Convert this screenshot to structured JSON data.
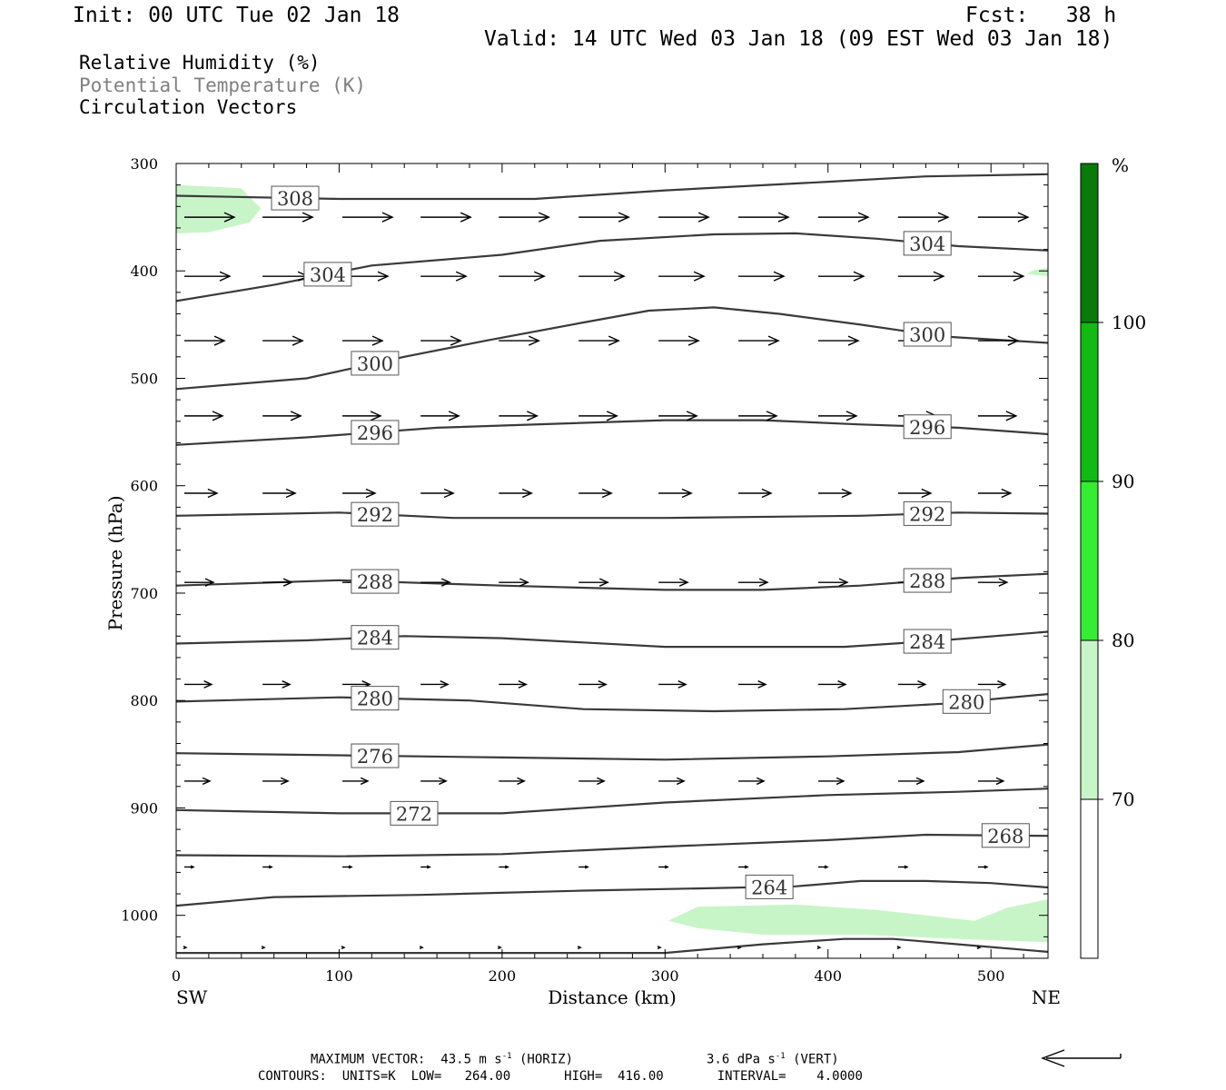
{
  "header": {
    "init": "Init: 00 UTC Tue 02 Jan 18",
    "fcst": "Fcst:   38 h",
    "valid": "Valid: 14 UTC Wed 03 Jan 18 (09 EST Wed 03 Jan 18)"
  },
  "fields": {
    "rh": "Relative Humidity (%)",
    "theta": "Potential Temperature (K)",
    "vectors": "Circulation Vectors"
  },
  "colors": {
    "contour": "#3a3a3a",
    "rh70": "#c8f5c8",
    "rh80": "#33ee33",
    "rh90": "#11bb11",
    "rh100": "#0a7a0a",
    "muted_text": "#808080"
  },
  "chart_data": {
    "type": "cross-section",
    "xlabel": "Distance (km)",
    "ylabel": "Pressure (hPa)",
    "xlim": [
      0,
      535
    ],
    "ylim": [
      1040,
      300
    ],
    "x_ticks": [
      "0",
      "100",
      "200",
      "300",
      "400",
      "500"
    ],
    "y_ticks": [
      "300",
      "400",
      "500",
      "600",
      "700",
      "800",
      "900",
      "1000"
    ],
    "left_label": "SW",
    "right_label": "NE",
    "contours": [
      {
        "level": "308",
        "label_x": 73,
        "points": [
          [
            0,
            330
          ],
          [
            100,
            333
          ],
          [
            220,
            333
          ],
          [
            300,
            325
          ],
          [
            400,
            317
          ],
          [
            460,
            312
          ],
          [
            535,
            310
          ]
        ]
      },
      {
        "level": "304",
        "label_x": 93,
        "label2_x": 461,
        "points": [
          [
            0,
            428
          ],
          [
            60,
            413
          ],
          [
            120,
            395
          ],
          [
            200,
            385
          ],
          [
            260,
            372
          ],
          [
            330,
            366
          ],
          [
            380,
            365
          ],
          [
            430,
            370
          ],
          [
            480,
            377
          ],
          [
            535,
            381
          ]
        ]
      },
      {
        "level": "300",
        "label_x": 122,
        "label2_x": 461,
        "points": [
          [
            0,
            510
          ],
          [
            80,
            500
          ],
          [
            140,
            480
          ],
          [
            190,
            465
          ],
          [
            250,
            448
          ],
          [
            290,
            437
          ],
          [
            330,
            434
          ],
          [
            370,
            440
          ],
          [
            420,
            450
          ],
          [
            470,
            461
          ],
          [
            535,
            467
          ]
        ]
      },
      {
        "level": "296",
        "label_x": 122,
        "label2_x": 461,
        "points": [
          [
            0,
            562
          ],
          [
            80,
            555
          ],
          [
            160,
            546
          ],
          [
            240,
            542
          ],
          [
            300,
            539
          ],
          [
            360,
            539
          ],
          [
            420,
            543
          ],
          [
            480,
            546
          ],
          [
            535,
            552
          ]
        ]
      },
      {
        "level": "292",
        "label_x": 122,
        "label2_x": 461,
        "points": [
          [
            0,
            628
          ],
          [
            100,
            625
          ],
          [
            170,
            630
          ],
          [
            300,
            630
          ],
          [
            420,
            628
          ],
          [
            480,
            625
          ],
          [
            535,
            626
          ]
        ]
      },
      {
        "level": "288",
        "label_x": 122,
        "label2_x": 461,
        "points": [
          [
            0,
            693
          ],
          [
            100,
            688
          ],
          [
            200,
            693
          ],
          [
            300,
            697
          ],
          [
            360,
            697
          ],
          [
            420,
            693
          ],
          [
            480,
            686
          ],
          [
            535,
            682
          ]
        ]
      },
      {
        "level": "284",
        "label_x": 122,
        "label2_x": 461,
        "points": [
          [
            0,
            747
          ],
          [
            80,
            744
          ],
          [
            140,
            740
          ],
          [
            200,
            742
          ],
          [
            300,
            750
          ],
          [
            410,
            750
          ],
          [
            470,
            744
          ],
          [
            535,
            736
          ]
        ]
      },
      {
        "level": "280",
        "label_x": 122,
        "label2_x": 485,
        "points": [
          [
            0,
            801
          ],
          [
            100,
            797
          ],
          [
            180,
            800
          ],
          [
            250,
            808
          ],
          [
            330,
            810
          ],
          [
            410,
            808
          ],
          [
            470,
            803
          ],
          [
            535,
            794
          ]
        ]
      },
      {
        "level": "276",
        "label_x": 122,
        "points": [
          [
            0,
            849
          ],
          [
            100,
            851
          ],
          [
            200,
            853
          ],
          [
            300,
            855
          ],
          [
            400,
            852
          ],
          [
            480,
            848
          ],
          [
            535,
            841
          ]
        ]
      },
      {
        "level": "272",
        "label_x": 146,
        "points": [
          [
            0,
            902
          ],
          [
            100,
            905
          ],
          [
            200,
            905
          ],
          [
            300,
            895
          ],
          [
            400,
            888
          ],
          [
            480,
            885
          ],
          [
            535,
            882
          ]
        ]
      },
      {
        "level": "268",
        "label_x": 509,
        "points": [
          [
            0,
            944
          ],
          [
            100,
            945
          ],
          [
            200,
            943
          ],
          [
            300,
            936
          ],
          [
            400,
            930
          ],
          [
            460,
            925
          ],
          [
            535,
            926
          ]
        ]
      },
      {
        "level": "264",
        "label_x": 364,
        "points": [
          [
            0,
            991
          ],
          [
            60,
            983
          ],
          [
            150,
            981
          ],
          [
            250,
            977
          ],
          [
            320,
            975
          ],
          [
            380,
            973
          ],
          [
            420,
            968
          ],
          [
            460,
            968
          ],
          [
            500,
            970
          ],
          [
            535,
            974
          ]
        ]
      },
      {
        "level": "",
        "points": [
          [
            0,
            1035
          ],
          [
            200,
            1035
          ],
          [
            300,
            1035
          ],
          [
            360,
            1027
          ],
          [
            410,
            1022
          ],
          [
            440,
            1022
          ],
          [
            480,
            1027
          ],
          [
            535,
            1034
          ]
        ]
      }
    ],
    "rh_shading": [
      {
        "category": "70",
        "points": [
          [
            0,
            320
          ],
          [
            40,
            323
          ],
          [
            52,
            342
          ],
          [
            45,
            355
          ],
          [
            20,
            364
          ],
          [
            0,
            365
          ]
        ]
      },
      {
        "category": "70",
        "points": [
          [
            525,
            400
          ],
          [
            535,
            397
          ],
          [
            535,
            405
          ],
          [
            522,
            403
          ]
        ]
      },
      {
        "category": "70",
        "points": [
          [
            302,
            1005
          ],
          [
            320,
            992
          ],
          [
            380,
            990
          ],
          [
            430,
            995
          ],
          [
            490,
            1005
          ],
          [
            510,
            993
          ],
          [
            535,
            985
          ],
          [
            535,
            1025
          ],
          [
            480,
            1022
          ],
          [
            420,
            1018
          ],
          [
            360,
            1018
          ],
          [
            320,
            1012
          ]
        ]
      }
    ],
    "vector_rows": [
      {
        "p": 350,
        "u": 55,
        "w": 0
      },
      {
        "p": 405,
        "u": 50,
        "w": 0
      },
      {
        "p": 465,
        "u": 44,
        "w": 0
      },
      {
        "p": 535,
        "u": 42,
        "w": 0
      },
      {
        "p": 607,
        "u": 36,
        "w": 0
      },
      {
        "p": 690,
        "u": 32,
        "w": 0
      },
      {
        "p": 785,
        "u": 30,
        "w": 0
      },
      {
        "p": 875,
        "u": 28,
        "w": 0
      },
      {
        "p": 955,
        "u": 10,
        "w": 0
      },
      {
        "p": 1030,
        "u": 2,
        "w": 0
      }
    ],
    "vector_x": [
      5,
      53,
      102,
      150,
      198,
      247,
      296,
      345,
      394,
      443,
      492
    ],
    "colorbar": {
      "unit": "%",
      "labels": [
        "100",
        "90",
        "80",
        "70"
      ]
    }
  },
  "footer": {
    "max_vector_prefix": "MAXIMUM VECTOR:  43.5 m s",
    "horiz_suffix": " (HORIZ)",
    "vert_prefix": "3.6 dPa s",
    "vert_suffix": " (VERT)",
    "exp": "-1",
    "contours_line": "CONTOURS:  UNITS=K  LOW=   264.00       HIGH=  416.00       INTERVAL=    4.0000"
  }
}
